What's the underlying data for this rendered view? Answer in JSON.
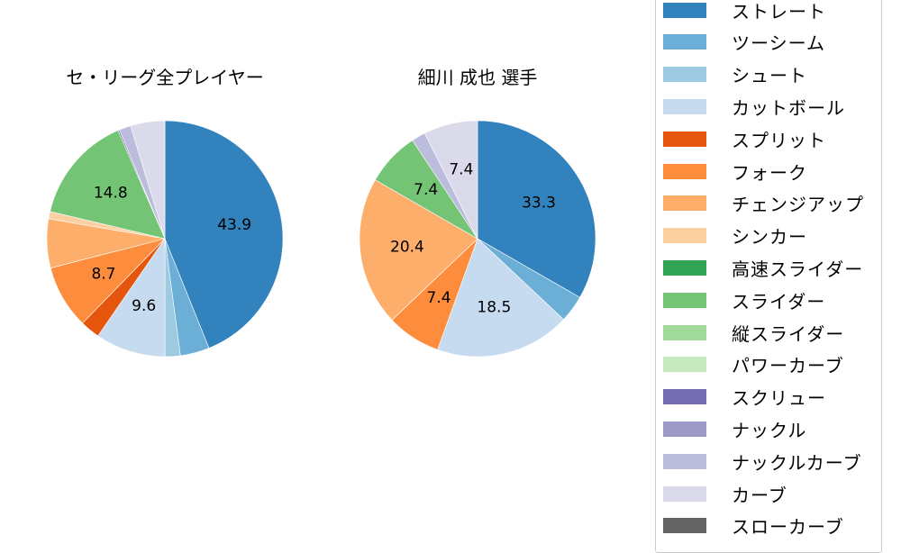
{
  "chart_data": [
    {
      "type": "pie",
      "title": "セ・リーグ全プレイヤー",
      "start_angle": "90deg (12 o'clock)",
      "direction": "clockwise",
      "categories": [
        "ストレート",
        "ツーシーム",
        "シュート",
        "カットボール",
        "スプリット",
        "フォーク",
        "チェンジアップ",
        "シンカー",
        "スライダー",
        "スクリュー",
        "ナックルカーブ",
        "カーブ"
      ],
      "values": [
        43.9,
        4.0,
        2.1,
        9.6,
        2.7,
        8.7,
        6.7,
        1.0,
        14.8,
        0.2,
        1.6,
        4.7
      ],
      "labels_shown": [
        "43.9",
        "",
        "",
        "9.6",
        "",
        "8.7",
        "",
        "",
        "14.8",
        "",
        "",
        ""
      ]
    },
    {
      "type": "pie",
      "title": "細川 成也  選手",
      "start_angle": "90deg (12 o'clock)",
      "direction": "clockwise",
      "categories": [
        "ストレート",
        "ツーシーム",
        "カットボール",
        "フォーク",
        "チェンジアップ",
        "スライダー",
        "ナックルカーブ",
        "カーブ"
      ],
      "values": [
        33.3,
        3.7,
        18.5,
        7.4,
        20.4,
        7.4,
        1.9,
        7.4
      ],
      "labels_shown": [
        "33.3",
        "",
        "18.5",
        "7.4",
        "20.4",
        "7.4",
        "",
        "7.4"
      ]
    }
  ],
  "titles": {
    "left": "セ・リーグ全プレイヤー",
    "right": "細川 成也  選手"
  },
  "colors": {
    "ストレート": "#3182bd",
    "ツーシーム": "#6baed6",
    "シュート": "#9ecae1",
    "カットボール": "#c6dbef",
    "スプリット": "#e6550d",
    "フォーク": "#fd8d3c",
    "チェンジアップ": "#fdae6b",
    "シンカー": "#fdd0a2",
    "高速スライダー": "#31a354",
    "スライダー": "#74c476",
    "縦スライダー": "#a1d99b",
    "パワーカーブ": "#c7e9c0",
    "スクリュー": "#756bb1",
    "ナックル": "#9e9ac8",
    "ナックルカーブ": "#bcbddc",
    "カーブ": "#dadaeb",
    "スローカーブ": "#636363"
  },
  "legend": [
    {
      "label": "ストレート",
      "color": "#3182bd"
    },
    {
      "label": "ツーシーム",
      "color": "#6baed6"
    },
    {
      "label": "シュート",
      "color": "#9ecae1"
    },
    {
      "label": "カットボール",
      "color": "#c6dbef"
    },
    {
      "label": "スプリット",
      "color": "#e6550d"
    },
    {
      "label": "フォーク",
      "color": "#fd8d3c"
    },
    {
      "label": "チェンジアップ",
      "color": "#fdae6b"
    },
    {
      "label": "シンカー",
      "color": "#fdd0a2"
    },
    {
      "label": "高速スライダー",
      "color": "#31a354"
    },
    {
      "label": "スライダー",
      "color": "#74c476"
    },
    {
      "label": "縦スライダー",
      "color": "#a1d99b"
    },
    {
      "label": "パワーカーブ",
      "color": "#c7e9c0"
    },
    {
      "label": "スクリュー",
      "color": "#756bb1"
    },
    {
      "label": "ナックル",
      "color": "#9e9ac8"
    },
    {
      "label": "ナックルカーブ",
      "color": "#bcbddc"
    },
    {
      "label": "カーブ",
      "color": "#dadaeb"
    },
    {
      "label": "スローカーブ",
      "color": "#636363"
    }
  ]
}
